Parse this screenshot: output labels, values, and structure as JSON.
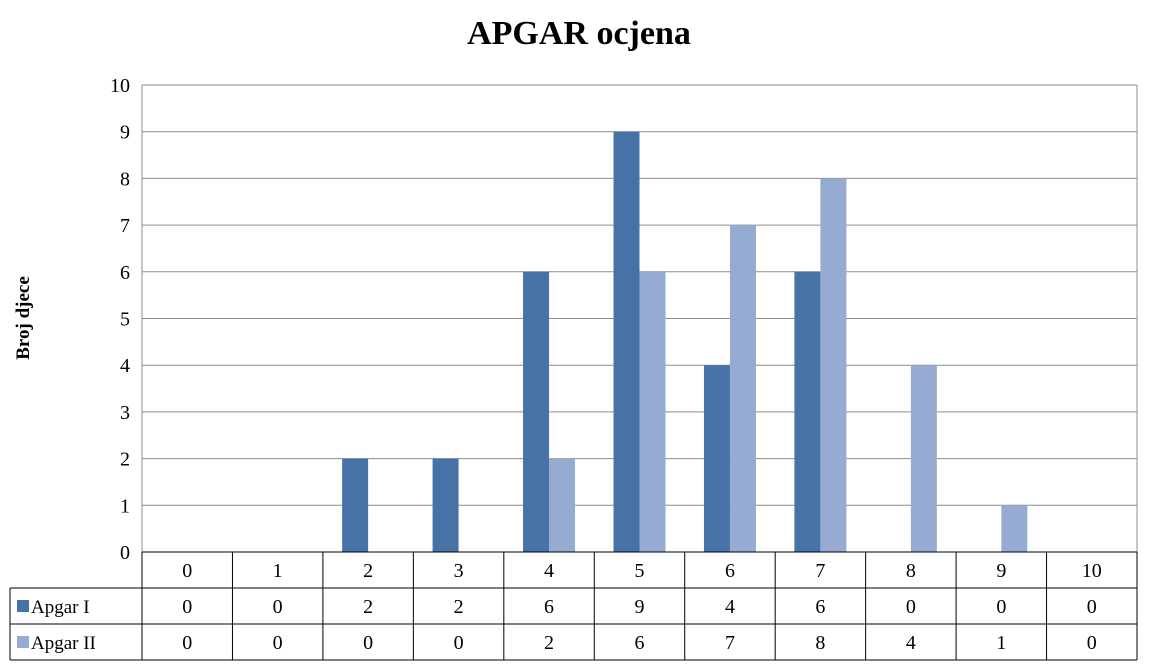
{
  "chart_data": {
    "type": "bar",
    "title": "APGAR ocjena",
    "xlabel": "",
    "ylabel": "Broj djece",
    "ylim": [
      0,
      10
    ],
    "yticks": [
      0,
      1,
      2,
      3,
      4,
      5,
      6,
      7,
      8,
      9,
      10
    ],
    "categories": [
      "0",
      "1",
      "2",
      "3",
      "4",
      "5",
      "6",
      "7",
      "8",
      "9",
      "10"
    ],
    "series": [
      {
        "name": "Apgar I",
        "values": [
          0,
          0,
          2,
          2,
          6,
          9,
          4,
          6,
          0,
          0,
          0
        ],
        "color": "#4672a8"
      },
      {
        "name": "Apgar II",
        "values": [
          0,
          0,
          0,
          0,
          2,
          6,
          7,
          8,
          4,
          1,
          0
        ],
        "color": "#96abd2"
      }
    ],
    "grid": true,
    "data_table": true
  }
}
